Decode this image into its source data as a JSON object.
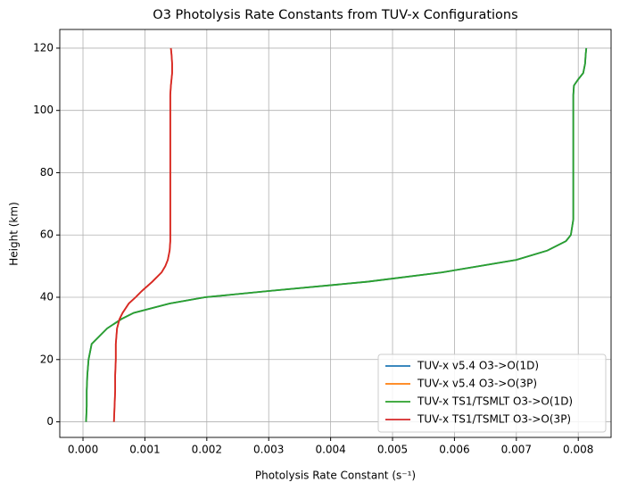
{
  "chart_data": {
    "type": "line",
    "title": "O3 Photolysis Rate Constants from TUV-x Configurations",
    "x_label": "Photolysis Rate Constant (s⁻¹)",
    "y_label": "Height (km)",
    "y": [
      0,
      5,
      10,
      15,
      20,
      25,
      30,
      33,
      35,
      38,
      40,
      42,
      45,
      48,
      50,
      52,
      55,
      58,
      60,
      65,
      70,
      80,
      90,
      100,
      105,
      108,
      110,
      112,
      115,
      118,
      120
    ],
    "series": [
      {
        "name": "TUV-x v5.4 O3->O(1D)",
        "color": "#1f77b4",
        "x": [
          5e-05,
          6e-05,
          6e-05,
          7e-05,
          9e-05,
          0.00014,
          0.00039,
          0.00062,
          0.00082,
          0.0014,
          0.00197,
          0.003,
          0.0046,
          0.0058,
          0.0064,
          0.007,
          0.0075,
          0.0078,
          0.00788,
          0.00792,
          0.00792,
          0.00792,
          0.00792,
          0.00792,
          0.00792,
          0.00793,
          0.008,
          0.00808,
          0.00811,
          0.00812,
          0.00813
        ]
      },
      {
        "name": "TUV-x v5.4 O3->O(3P)",
        "color": "#ff7f0e",
        "x": [
          0.0005,
          0.00051,
          0.00052,
          0.00052,
          0.00053,
          0.00053,
          0.00055,
          0.00059,
          0.00064,
          0.00074,
          0.00085,
          0.00095,
          0.00112,
          0.00127,
          0.00133,
          0.00137,
          0.0014,
          0.00141,
          0.00141,
          0.00141,
          0.00141,
          0.00141,
          0.00141,
          0.00141,
          0.00141,
          0.00142,
          0.00143,
          0.00144,
          0.00144,
          0.00143,
          0.00142
        ]
      },
      {
        "name": "TUV-x TS1/TSMLT O3->O(1D)",
        "color": "#2ca02c",
        "x": [
          5e-05,
          6e-05,
          6e-05,
          7e-05,
          9e-05,
          0.00014,
          0.00039,
          0.00062,
          0.00082,
          0.0014,
          0.00197,
          0.003,
          0.0046,
          0.0058,
          0.0064,
          0.007,
          0.0075,
          0.0078,
          0.00788,
          0.00792,
          0.00792,
          0.00792,
          0.00792,
          0.00792,
          0.00792,
          0.00793,
          0.008,
          0.00808,
          0.00811,
          0.00812,
          0.00813
        ]
      },
      {
        "name": "TUV-x TS1/TSMLT O3->O(3P)",
        "color": "#d62728",
        "x": [
          0.0005,
          0.00051,
          0.00052,
          0.00052,
          0.00053,
          0.00053,
          0.00055,
          0.00059,
          0.00064,
          0.00074,
          0.00085,
          0.00095,
          0.00112,
          0.00127,
          0.00133,
          0.00137,
          0.0014,
          0.00141,
          0.00141,
          0.00141,
          0.00141,
          0.00141,
          0.00141,
          0.00141,
          0.00141,
          0.00142,
          0.00143,
          0.00144,
          0.00144,
          0.00143,
          0.00142
        ]
      }
    ],
    "xlim": [
      -0.000375,
      0.00853
    ],
    "xticks": [
      {
        "value": 0,
        "label": "0.000"
      },
      {
        "value": 0.001,
        "label": "0.001"
      },
      {
        "value": 0.002,
        "label": "0.002"
      },
      {
        "value": 0.003,
        "label": "0.003"
      },
      {
        "value": 0.004,
        "label": "0.004"
      },
      {
        "value": 0.005,
        "label": "0.005"
      },
      {
        "value": 0.006,
        "label": "0.006"
      },
      {
        "value": 0.007,
        "label": "0.007"
      },
      {
        "value": 0.008,
        "label": "0.008"
      }
    ],
    "ylim": [
      -5,
      126
    ],
    "yticks": [
      0,
      20,
      40,
      60,
      80,
      100,
      120
    ],
    "grid": true,
    "legend": "lower-right"
  }
}
